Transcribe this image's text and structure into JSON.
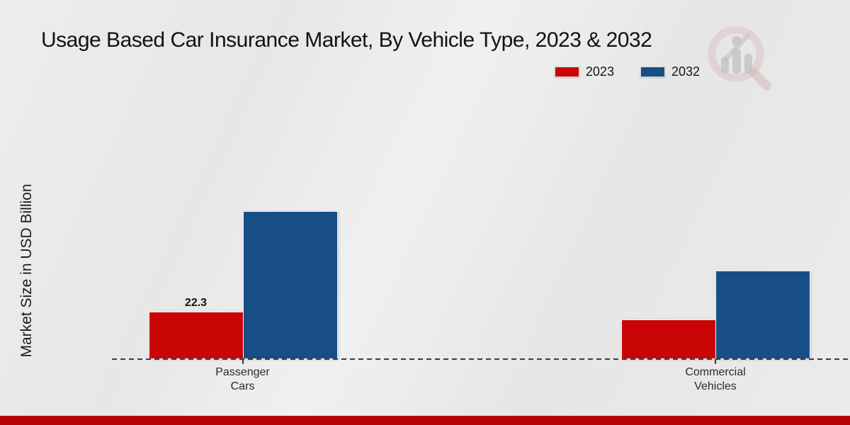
{
  "chart": {
    "title": "Usage Based Car Insurance Market, By Vehicle Type, 2023 & 2032",
    "ylabel": "Market Size in USD Billion"
  },
  "chart_data": {
    "type": "bar",
    "title": "Usage Based Car Insurance Market, By Vehicle Type, 2023 & 2032",
    "xlabel": "",
    "ylabel": "Market Size in USD Billion",
    "categories": [
      [
        "Passenger",
        "Cars"
      ],
      [
        "Commercial",
        "Vehicles"
      ]
    ],
    "series": [
      {
        "name": "2023",
        "color": "#c90505",
        "values": [
          22.3,
          18.6
        ],
        "value_labels": [
          "22.3",
          ""
        ]
      },
      {
        "name": "2032",
        "color": "#174e86",
        "values": [
          69.6,
          41.6
        ],
        "value_labels": [
          "",
          ""
        ]
      }
    ],
    "ylim": [
      0,
      80
    ],
    "value_axis_ticks_visible": false,
    "grid": false,
    "legend_position": "top-right",
    "baseline_style": "dashed"
  },
  "branding": {
    "watermark_icon": "market-research-magnifier-logo",
    "footer_strip_color": "#b50505"
  }
}
